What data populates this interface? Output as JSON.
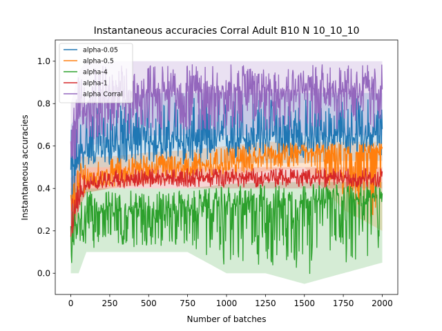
{
  "chart_data": {
    "type": "line",
    "title": "Instantaneous accuracies Corral Adult B10 N 10_10_10",
    "xlabel": "Number of batches",
    "ylabel": "Instantaneous accuracies",
    "xlim": [
      -100,
      2100
    ],
    "ylim": [
      -0.1,
      1.1
    ],
    "xticks": [
      0,
      250,
      500,
      750,
      1000,
      1250,
      1500,
      1750,
      2000
    ],
    "yticks": [
      0.0,
      0.2,
      0.4,
      0.6,
      0.8,
      1.0
    ],
    "grid": false,
    "legend_position": "top-left",
    "x_range": [
      0,
      2000
    ],
    "series": [
      {
        "name": "alpha-0.05",
        "color": "#1f77b4",
        "segments": [
          {
            "x": [
              0,
              50,
              100,
              250,
              500,
              750,
              1000,
              1250,
              1500,
              1750,
              2000
            ],
            "mean": [
              0.45,
              0.55,
              0.58,
              0.6,
              0.62,
              0.62,
              0.63,
              0.64,
              0.64,
              0.65,
              0.65
            ],
            "low": [
              0.2,
              0.45,
              0.5,
              0.5,
              0.5,
              0.5,
              0.52,
              0.52,
              0.52,
              0.53,
              0.53
            ],
            "high": [
              0.7,
              0.75,
              0.8,
              0.8,
              0.85,
              0.85,
              0.85,
              0.85,
              0.85,
              0.85,
              0.85
            ]
          }
        ]
      },
      {
        "name": "alpha-0.5",
        "color": "#ff7f0e",
        "segments": [
          {
            "x": [
              0,
              50,
              100,
              250,
              500,
              750,
              1000,
              1250,
              1500,
              1750,
              2000
            ],
            "mean": [
              0.3,
              0.4,
              0.45,
              0.47,
              0.5,
              0.5,
              0.52,
              0.55,
              0.57,
              0.56,
              0.57
            ],
            "low": [
              0.1,
              0.3,
              0.38,
              0.4,
              0.42,
              0.44,
              0.45,
              0.48,
              0.5,
              0.3,
              0.2
            ],
            "high": [
              0.42,
              0.55,
              0.55,
              0.55,
              0.57,
              0.58,
              0.6,
              0.62,
              0.62,
              0.62,
              0.62
            ]
          }
        ]
      },
      {
        "name": "alpha-4",
        "color": "#2ca02c",
        "segments": [
          {
            "x": [
              0,
              50,
              100,
              250,
              500,
              750,
              1000,
              1250,
              1500,
              1750,
              2000
            ],
            "mean": [
              0.2,
              0.25,
              0.28,
              0.3,
              0.3,
              0.3,
              0.32,
              0.33,
              0.34,
              0.35,
              0.35
            ],
            "low": [
              0.0,
              0.0,
              0.1,
              0.1,
              0.1,
              0.1,
              0.0,
              0.0,
              -0.05,
              0.0,
              0.05
            ],
            "high": [
              0.4,
              0.4,
              0.4,
              0.4,
              0.4,
              0.4,
              0.42,
              0.43,
              0.43,
              0.43,
              0.43
            ]
          }
        ]
      },
      {
        "name": "alpha-1",
        "color": "#d62728",
        "segments": [
          {
            "x": [
              0,
              50,
              100,
              250,
              500,
              750,
              1000,
              1250,
              1500,
              1750,
              2000
            ],
            "mean": [
              0.2,
              0.35,
              0.42,
              0.44,
              0.44,
              0.45,
              0.45,
              0.45,
              0.45,
              0.45,
              0.45
            ],
            "low": [
              0.1,
              0.3,
              0.38,
              0.4,
              0.4,
              0.4,
              0.4,
              0.4,
              0.4,
              0.4,
              0.4
            ],
            "high": [
              0.45,
              0.48,
              0.5,
              0.5,
              0.5,
              0.5,
              0.5,
              0.5,
              0.5,
              0.5,
              0.5
            ]
          }
        ]
      },
      {
        "name": "alpha Corral",
        "color": "#9467bd",
        "segments": [
          {
            "x": [
              0,
              50,
              100,
              250,
              500,
              750,
              1000,
              1250,
              1500,
              1750,
              2000
            ],
            "mean": [
              0.6,
              0.75,
              0.8,
              0.82,
              0.85,
              0.86,
              0.86,
              0.87,
              0.87,
              0.87,
              0.87
            ],
            "low": [
              0.2,
              0.5,
              0.6,
              0.62,
              0.65,
              0.65,
              0.65,
              0.65,
              0.65,
              0.65,
              0.65
            ],
            "high": [
              0.8,
              0.95,
              1.0,
              1.0,
              1.0,
              1.0,
              1.0,
              1.0,
              1.0,
              1.0,
              1.0
            ]
          }
        ]
      }
    ]
  }
}
